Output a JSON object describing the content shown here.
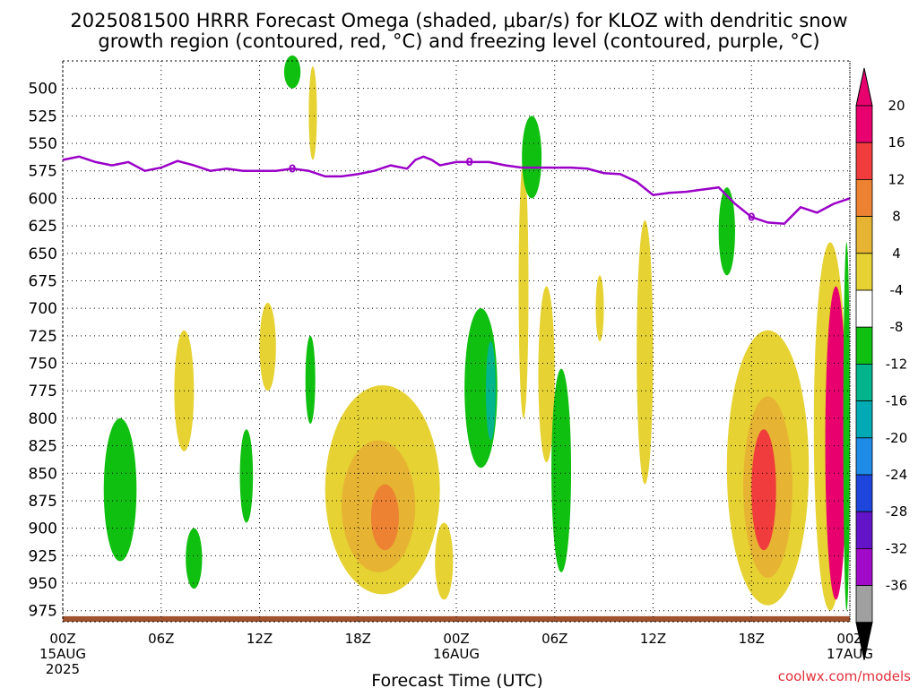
{
  "title": {
    "line1": "2025081500 HRRR Forecast Omega (shaded, μbar/s) for KLOZ with dendritic snow",
    "line2": "growth region (contoured, red, °C) and freezing level (contoured, purple, °C)"
  },
  "xaxis_label": "Forecast Time (UTC)",
  "credit": "coolwx.com/models",
  "chart_data": {
    "type": "heatmap",
    "title": "2025081500 HRRR Forecast Omega (shaded, μbar/s) for KLOZ with dendritic snow growth region (contoured, red, °C) and freezing level (contoured, purple, °C)",
    "xlabel": "Forecast Time (UTC)",
    "ylabel": "",
    "x_range_hours": [
      0,
      48
    ],
    "y_range_hpa": [
      475,
      985
    ],
    "y_scale": "pressure (inverted)",
    "grid": true,
    "x_ticks": [
      {
        "hour": 0,
        "label": "00Z",
        "sub1": "15AUG",
        "sub2": "2025"
      },
      {
        "hour": 6,
        "label": "06Z"
      },
      {
        "hour": 12,
        "label": "12Z"
      },
      {
        "hour": 18,
        "label": "18Z"
      },
      {
        "hour": 24,
        "label": "00Z",
        "sub1": "16AUG"
      },
      {
        "hour": 30,
        "label": "06Z"
      },
      {
        "hour": 36,
        "label": "12Z"
      },
      {
        "hour": 42,
        "label": "18Z"
      },
      {
        "hour": 48,
        "label": "00Z",
        "sub1": "17AUG"
      }
    ],
    "y_ticks": [
      500,
      525,
      550,
      575,
      600,
      625,
      650,
      675,
      700,
      725,
      750,
      775,
      800,
      825,
      850,
      875,
      900,
      925,
      950,
      975
    ],
    "colorbar": {
      "labels": [
        "20",
        "16",
        "12",
        "8",
        "4",
        "-4",
        "-8",
        "-12",
        "-16",
        "-20",
        "-24",
        "-28",
        "-32",
        "-36"
      ],
      "colors": [
        "#e8006e",
        "#f03c3c",
        "#ec8232",
        "#e6b432",
        "#e6d232",
        "#ffffff",
        "#10c010",
        "#00b48c",
        "#00aab4",
        "#1e8ce6",
        "#1e46dc",
        "#6414c8",
        "#a00ac8",
        "#a0a0a0"
      ],
      "top_arrow_color": "#e8006e",
      "bottom_arrow_color": "#000000"
    },
    "freezing_level": {
      "label": "0",
      "hours": [
        0,
        1,
        2,
        3,
        4,
        5,
        6,
        7,
        8,
        9,
        10,
        11,
        12,
        13,
        14,
        15,
        16,
        17,
        18,
        19,
        20,
        21,
        21.5,
        22,
        22.5,
        23,
        24,
        25,
        26,
        27,
        28,
        29,
        30,
        31,
        32,
        33,
        34,
        35,
        36,
        37,
        38,
        39,
        40,
        41,
        42,
        43,
        44,
        45,
        46,
        47,
        48
      ],
      "pressure": [
        565,
        562,
        567,
        570,
        567,
        575,
        572,
        566,
        570,
        575,
        573,
        575,
        575,
        575,
        573,
        575,
        580,
        580,
        578,
        575,
        570,
        573,
        565,
        562,
        565,
        570,
        567,
        567,
        567,
        570,
        572,
        572,
        572,
        572,
        573,
        577,
        578,
        585,
        597,
        595,
        594,
        592,
        590,
        605,
        617,
        622,
        623,
        608,
        613,
        605,
        600
      ]
    },
    "dendritic_region": "not present",
    "terrain_surface_hpa": 980,
    "omega_regions": [
      {
        "value": -6,
        "hours": [
          2.5,
          4.5
        ],
        "pressure": [
          800,
          930
        ]
      },
      {
        "value": 6,
        "hours": [
          6.8,
          8.0
        ],
        "pressure": [
          720,
          830
        ]
      },
      {
        "value": -6,
        "hours": [
          7.5,
          8.5
        ],
        "pressure": [
          900,
          955
        ]
      },
      {
        "value": 6,
        "hours": [
          12.0,
          13.0
        ],
        "pressure": [
          695,
          775
        ]
      },
      {
        "value": -6,
        "hours": [
          10.8,
          11.6
        ],
        "pressure": [
          810,
          895
        ]
      },
      {
        "value": -6,
        "hours": [
          13.5,
          14.5
        ],
        "pressure": [
          470,
          500
        ]
      },
      {
        "value": 6,
        "hours": [
          15.0,
          15.5
        ],
        "pressure": [
          480,
          565
        ]
      },
      {
        "value": -6,
        "hours": [
          14.8,
          15.4
        ],
        "pressure": [
          725,
          805
        ]
      },
      {
        "value": 6,
        "hours": [
          16.0,
          23.0
        ],
        "pressure": [
          770,
          960
        ]
      },
      {
        "value": 10,
        "hours": [
          17.0,
          21.5
        ],
        "pressure": [
          820,
          940
        ]
      },
      {
        "value": 14,
        "hours": [
          18.8,
          20.5
        ],
        "pressure": [
          860,
          920
        ]
      },
      {
        "value": 6,
        "hours": [
          22.7,
          23.8
        ],
        "pressure": [
          895,
          965
        ]
      },
      {
        "value": -6,
        "hours": [
          24.5,
          26.5
        ],
        "pressure": [
          700,
          845
        ]
      },
      {
        "value": -10,
        "hours": [
          25.8,
          26.4
        ],
        "pressure": [
          730,
          820
        ]
      },
      {
        "value": 6,
        "hours": [
          27.8,
          28.4
        ],
        "pressure": [
          565,
          800
        ]
      },
      {
        "value": -6,
        "hours": [
          28.0,
          29.2
        ],
        "pressure": [
          525,
          600
        ]
      },
      {
        "value": 6,
        "hours": [
          29.0,
          30.0
        ],
        "pressure": [
          680,
          840
        ]
      },
      {
        "value": -6,
        "hours": [
          29.8,
          31.0
        ],
        "pressure": [
          755,
          940
        ]
      },
      {
        "value": 6,
        "hours": [
          32.5,
          33.0
        ],
        "pressure": [
          670,
          730
        ]
      },
      {
        "value": 6,
        "hours": [
          35.0,
          36.0
        ],
        "pressure": [
          620,
          860
        ]
      },
      {
        "value": -6,
        "hours": [
          40.0,
          41.0
        ],
        "pressure": [
          590,
          670
        ]
      },
      {
        "value": 6,
        "hours": [
          40.5,
          45.5
        ],
        "pressure": [
          720,
          970
        ]
      },
      {
        "value": 10,
        "hours": [
          41.5,
          44.5
        ],
        "pressure": [
          780,
          945
        ]
      },
      {
        "value": 16,
        "hours": [
          42.0,
          43.5
        ],
        "pressure": [
          810,
          920
        ]
      },
      {
        "value": 6,
        "hours": [
          45.8,
          47.8
        ],
        "pressure": [
          640,
          975
        ]
      },
      {
        "value": 20,
        "hours": [
          46.5,
          47.8
        ],
        "pressure": [
          680,
          965
        ]
      },
      {
        "value": -6,
        "hours": [
          47.6,
          48.0
        ],
        "pressure": [
          640,
          975
        ]
      }
    ]
  }
}
